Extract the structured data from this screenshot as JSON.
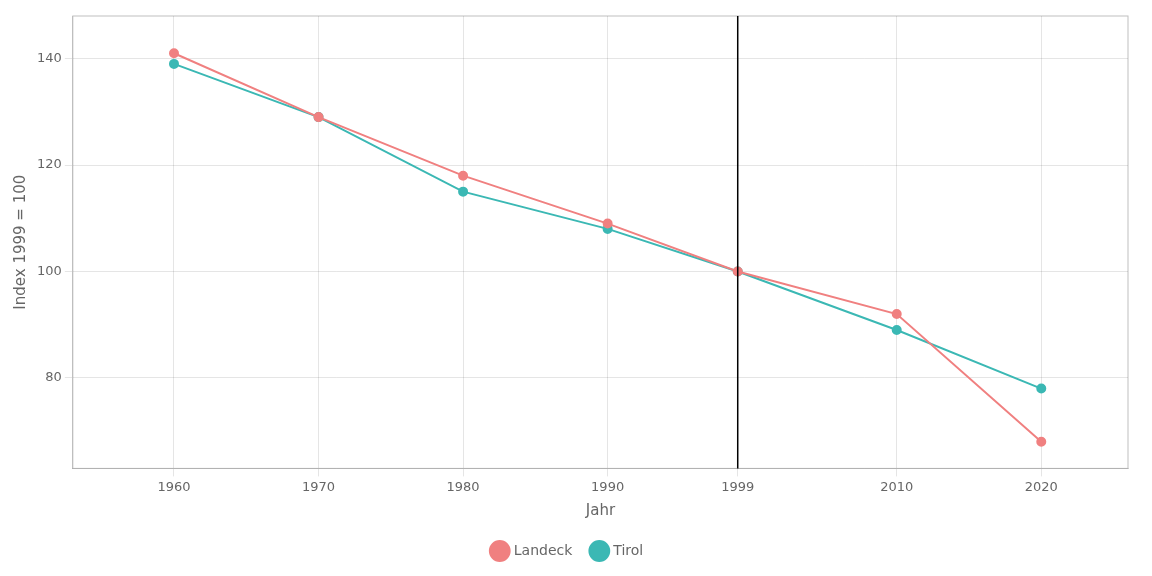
{
  "chart_data": {
    "type": "line",
    "x_label": "Jahr",
    "y_label": "Index 1999 = 100",
    "x": [
      1960,
      1970,
      1980,
      1990,
      1999,
      2010,
      2020
    ],
    "series": [
      {
        "name": "Landeck",
        "color": "#F08080",
        "marker": "o",
        "line_style": "solid",
        "values": [
          141,
          129,
          118,
          109,
          100,
          92,
          68
        ]
      },
      {
        "name": "Tirol",
        "color": "#3BB8B4",
        "marker": "o",
        "line_style": "solid",
        "values": [
          139,
          129,
          115,
          108,
          100,
          89,
          78
        ]
      }
    ],
    "vlines": [
      1999
    ],
    "xlim": [
      1953,
      2026
    ],
    "xticks": [
      1960,
      1970,
      1980,
      1990,
      1999,
      2010,
      2020
    ],
    "ylim": [
      63,
      148
    ],
    "yticks": [
      80,
      100,
      120,
      140
    ],
    "grid": true,
    "legend": "bottom"
  }
}
